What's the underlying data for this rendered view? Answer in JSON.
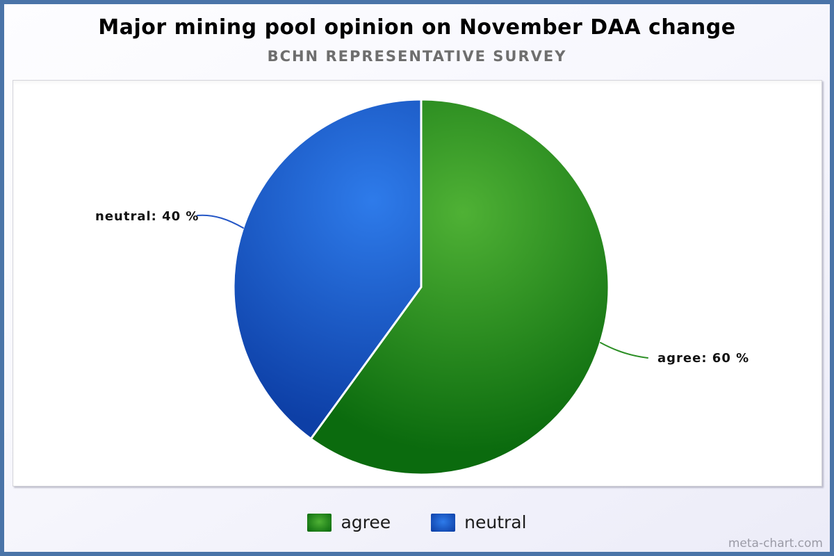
{
  "page": {
    "watermark": "meta-chart.com",
    "border_color": "#4a74a8",
    "panel_background": "#ffffff"
  },
  "chart_data": {
    "type": "pie",
    "title": "Major mining pool opinion on November DAA change",
    "subtitle": "BCHN REPRESENTATIVE SURVEY",
    "start_angle": "top",
    "direction": "clockwise",
    "legend_position": "bottom",
    "slices": [
      {
        "label": "agree",
        "value": 60,
        "percent": "60 %",
        "callout": "agree: 60 %",
        "color_light": "#4fb135",
        "color_dark": "#0b6b0e",
        "leader_color": "#2c8f25"
      },
      {
        "label": "neutral",
        "value": 40,
        "percent": "40 %",
        "callout": "neutral: 40 %",
        "color_light": "#2e7bea",
        "color_dark": "#0d3fa6",
        "leader_color": "#2456c6"
      }
    ]
  }
}
